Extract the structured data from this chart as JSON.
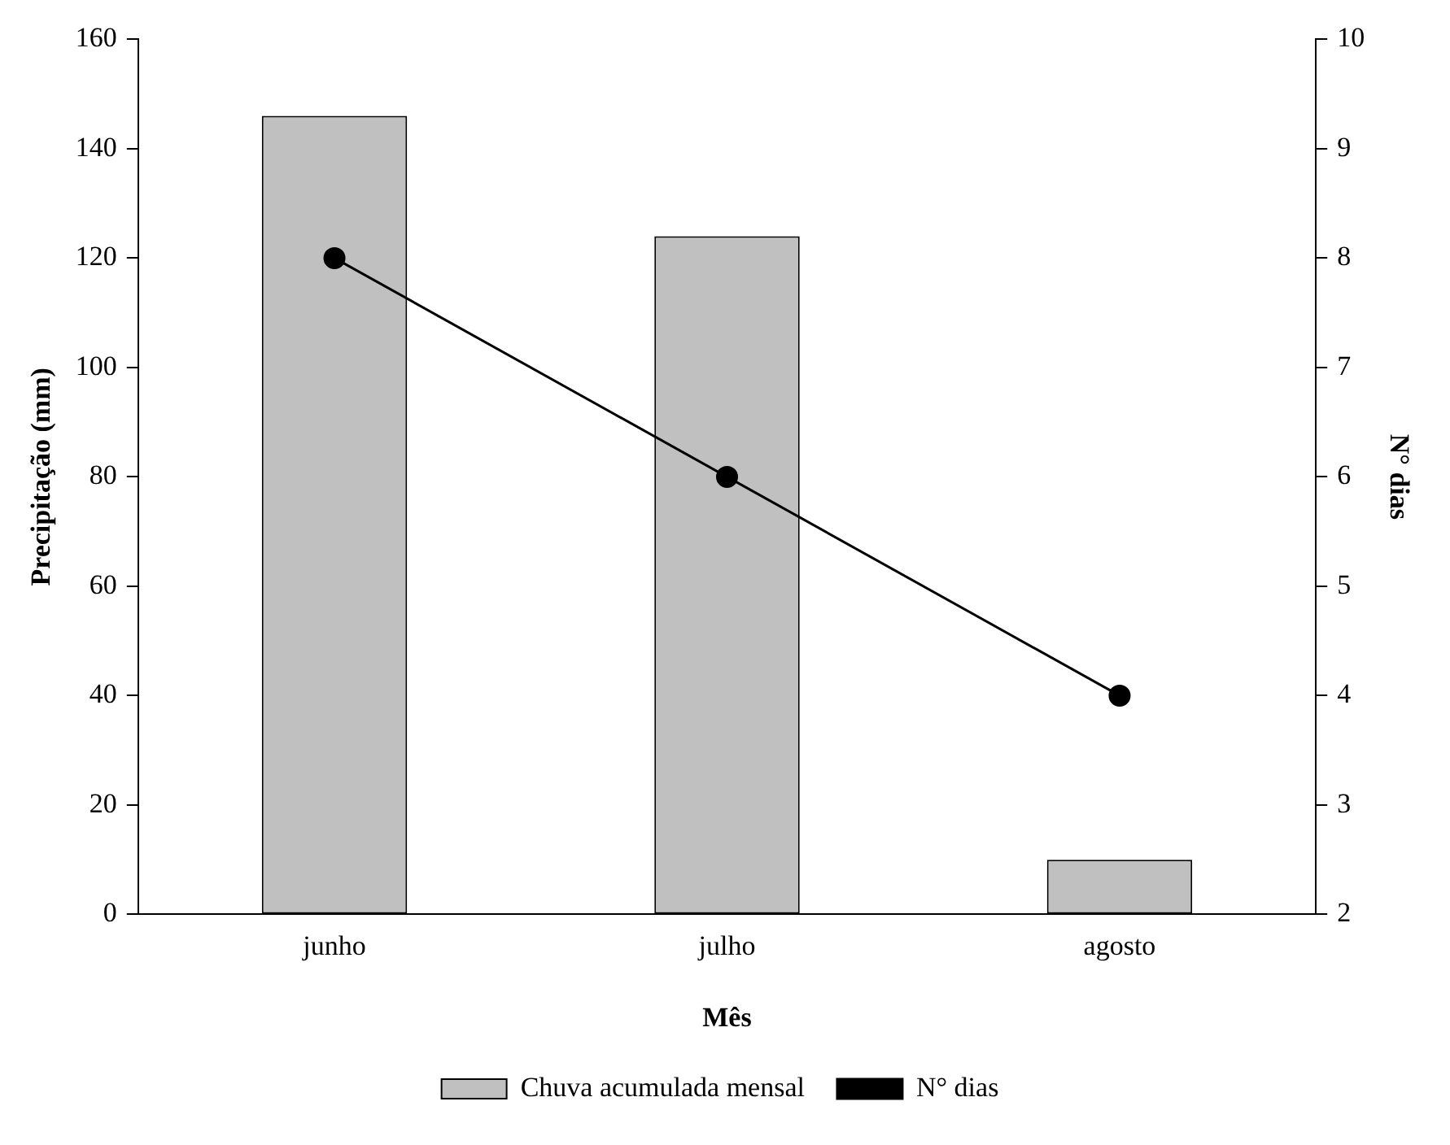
{
  "chart_data": {
    "type": "bar",
    "xlabel": "Mês",
    "ylabel": "Precipitação (mm)",
    "y2label": "N° dias",
    "categories": [
      "junho",
      "julho",
      "agosto"
    ],
    "series": [
      {
        "name": "Chuva acumulada mensal",
        "color": "#c0c0c0",
        "values": [
          146,
          124,
          10
        ]
      },
      {
        "name": "N° dias",
        "type": "line",
        "axis": "y2",
        "color": "#000000",
        "values": [
          8,
          6,
          4
        ],
        "marker": "circle"
      }
    ],
    "ylim": [
      0,
      160
    ],
    "yticks": [
      0,
      20,
      40,
      60,
      80,
      100,
      120,
      140,
      160
    ],
    "y2lim": [
      2,
      10
    ],
    "y2ticks": [
      2,
      3,
      4,
      5,
      6,
      7,
      8,
      9,
      10
    ],
    "grid": false,
    "legend": "bottom"
  }
}
